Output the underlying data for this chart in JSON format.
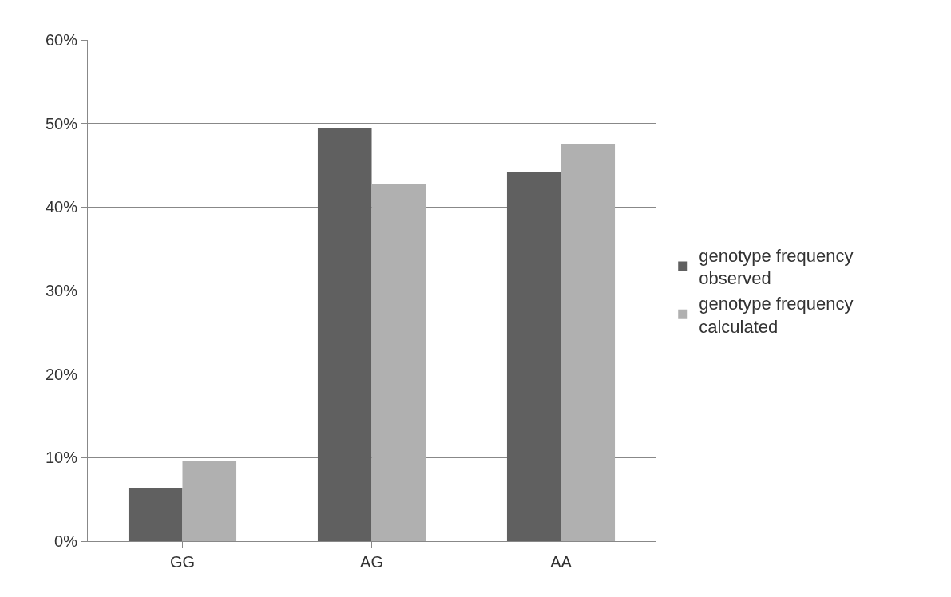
{
  "chart_data": {
    "type": "bar",
    "categories": [
      "GG",
      "AG",
      "AA"
    ],
    "series": [
      {
        "name": "genotype frequency observed",
        "color": "#606060",
        "values": [
          6.4,
          49.4,
          44.2
        ]
      },
      {
        "name": "genotype frequency calculated",
        "color": "#b0b0b0",
        "values": [
          9.6,
          42.8,
          47.5
        ]
      }
    ],
    "ylim": [
      0,
      60
    ],
    "yticks": [
      {
        "value": 0,
        "label": "0%"
      },
      {
        "value": 10,
        "label": "10%"
      },
      {
        "value": 20,
        "label": "20%"
      },
      {
        "value": 30,
        "label": "30%"
      },
      {
        "value": 40,
        "label": "40%"
      },
      {
        "value": 50,
        "label": "50%"
      },
      {
        "value": 60,
        "label": "60%"
      }
    ],
    "grid": "y",
    "legend": "right"
  }
}
